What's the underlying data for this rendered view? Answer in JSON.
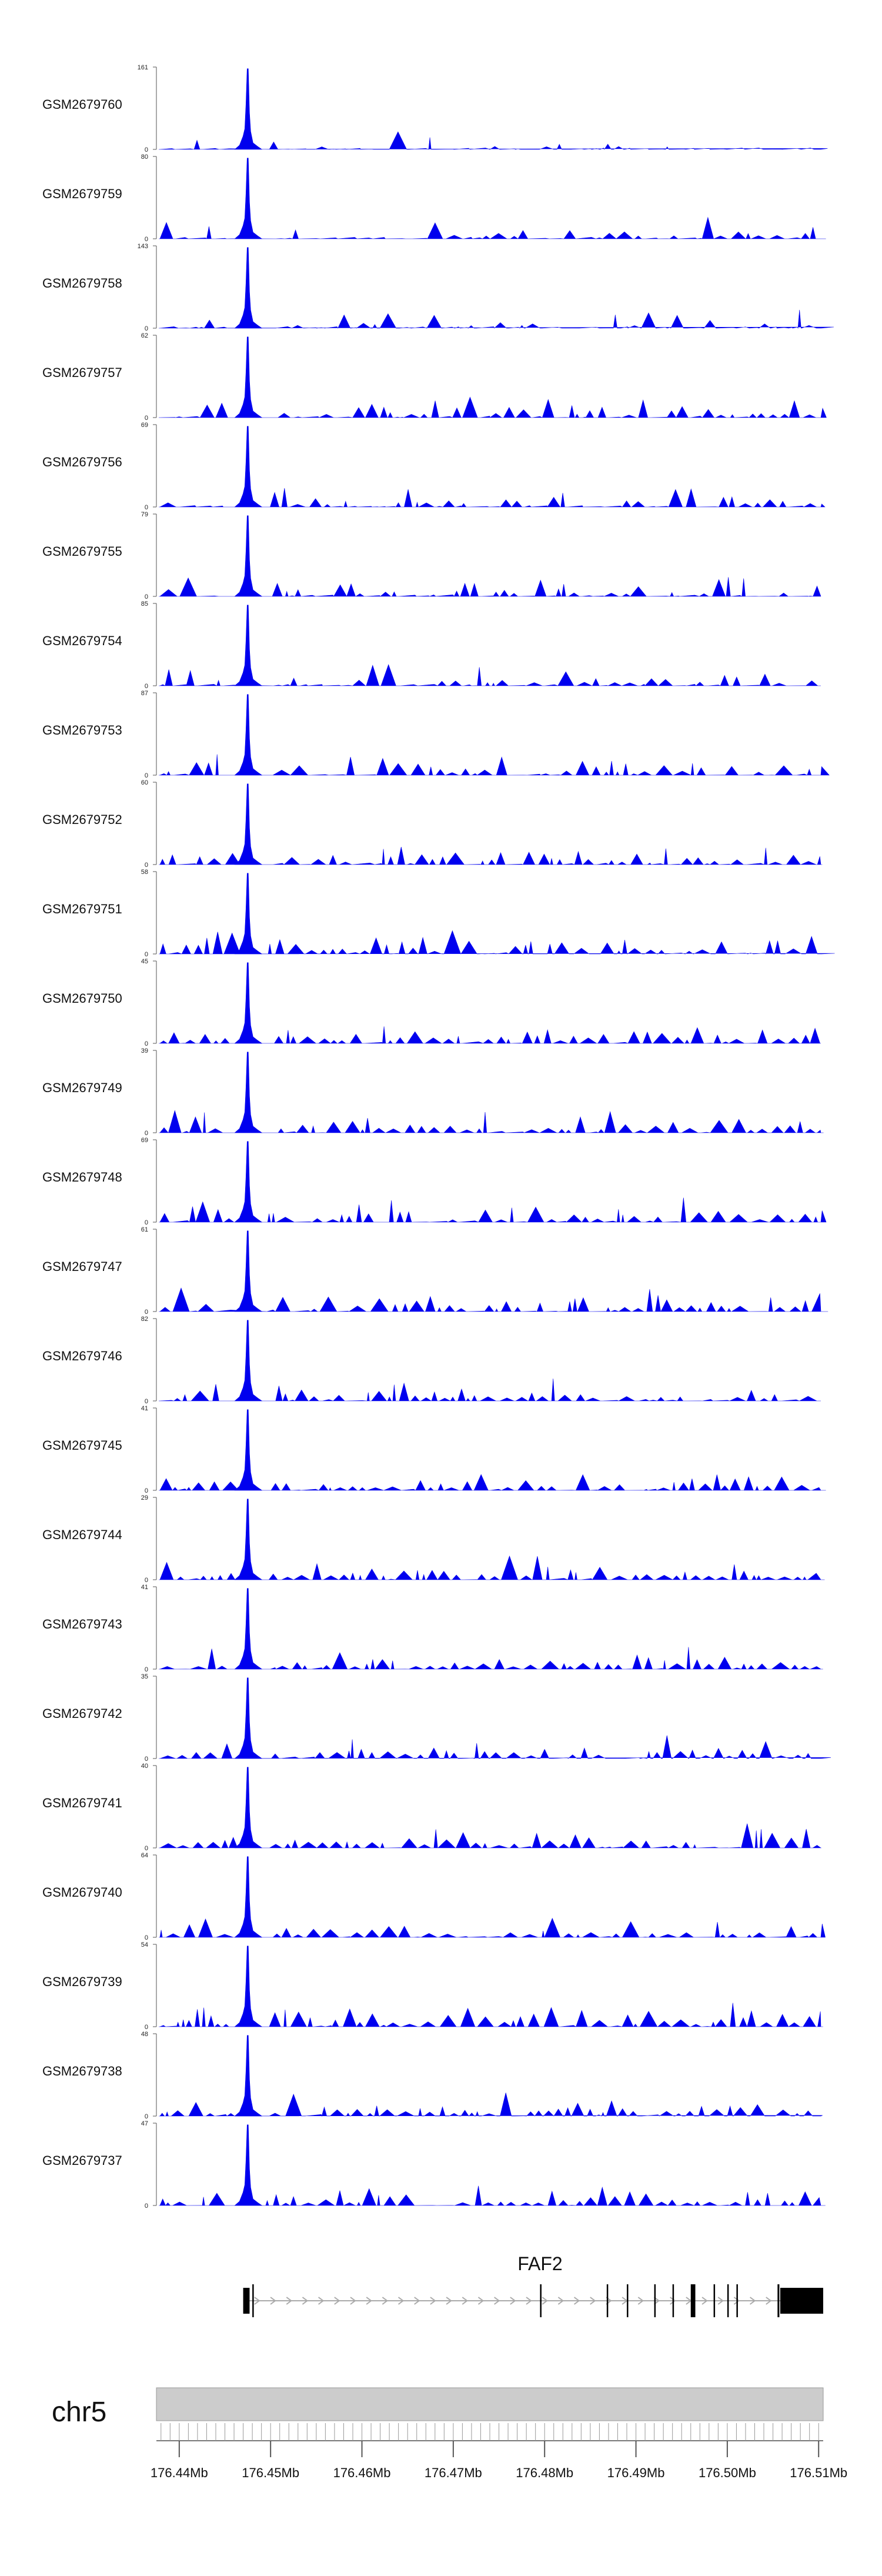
{
  "chart_data": {
    "type": "area",
    "chromosome": "chr5",
    "gene": "FAF2",
    "xlim": [
      176.4375,
      176.5105
    ],
    "peak_position": 176.4475,
    "tracks": [
      {
        "name": "GSM2679760",
        "ymax": 161,
        "ymin": 0
      },
      {
        "name": "GSM2679759",
        "ymax": 80,
        "ymin": 0
      },
      {
        "name": "GSM2679758",
        "ymax": 143,
        "ymin": 0
      },
      {
        "name": "GSM2679757",
        "ymax": 62,
        "ymin": 0
      },
      {
        "name": "GSM2679756",
        "ymax": 69,
        "ymin": 0
      },
      {
        "name": "GSM2679755",
        "ymax": 79,
        "ymin": 0
      },
      {
        "name": "GSM2679754",
        "ymax": 85,
        "ymin": 0
      },
      {
        "name": "GSM2679753",
        "ymax": 87,
        "ymin": 0
      },
      {
        "name": "GSM2679752",
        "ymax": 60,
        "ymin": 0
      },
      {
        "name": "GSM2679751",
        "ymax": 58,
        "ymin": 0
      },
      {
        "name": "GSM2679750",
        "ymax": 45,
        "ymin": 0
      },
      {
        "name": "GSM2679749",
        "ymax": 39,
        "ymin": 0
      },
      {
        "name": "GSM2679748",
        "ymax": 69,
        "ymin": 0
      },
      {
        "name": "GSM2679747",
        "ymax": 61,
        "ymin": 0
      },
      {
        "name": "GSM2679746",
        "ymax": 82,
        "ymin": 0
      },
      {
        "name": "GSM2679745",
        "ymax": 41,
        "ymin": 0
      },
      {
        "name": "GSM2679744",
        "ymax": 29,
        "ymin": 0
      },
      {
        "name": "GSM2679743",
        "ymax": 41,
        "ymin": 0
      },
      {
        "name": "GSM2679742",
        "ymax": 35,
        "ymin": 0
      },
      {
        "name": "GSM2679741",
        "ymax": 40,
        "ymin": 0
      },
      {
        "name": "GSM2679740",
        "ymax": 64,
        "ymin": 0
      },
      {
        "name": "GSM2679739",
        "ymax": 54,
        "ymin": 0
      },
      {
        "name": "GSM2679738",
        "ymax": 48,
        "ymin": 0
      },
      {
        "name": "GSM2679737",
        "ymax": 47,
        "ymin": 0
      }
    ],
    "gene_model": {
      "start": 176.447,
      "end": 176.5105,
      "strand": "+",
      "exons": [
        {
          "start": 176.447,
          "end": 176.4477
        },
        {
          "start": 176.448,
          "end": 176.4481
        },
        {
          "start": 176.4795,
          "end": 176.4796
        },
        {
          "start": 176.4868,
          "end": 176.4869
        },
        {
          "start": 176.489,
          "end": 176.4891
        },
        {
          "start": 176.492,
          "end": 176.4921
        },
        {
          "start": 176.494,
          "end": 176.4941
        },
        {
          "start": 176.496,
          "end": 176.4965
        },
        {
          "start": 176.4985,
          "end": 176.4986
        },
        {
          "start": 176.5,
          "end": 176.5001
        },
        {
          "start": 176.501,
          "end": 176.5011
        },
        {
          "start": 176.5055,
          "end": 176.5057
        },
        {
          "start": 176.5058,
          "end": 176.5105
        }
      ]
    },
    "axis": {
      "ticks": [
        {
          "pos": 176.44,
          "label": "176.44Mb"
        },
        {
          "pos": 176.45,
          "label": "176.45Mb"
        },
        {
          "pos": 176.46,
          "label": "176.46Mb"
        },
        {
          "pos": 176.47,
          "label": "176.47Mb"
        },
        {
          "pos": 176.48,
          "label": "176.48Mb"
        },
        {
          "pos": 176.49,
          "label": "176.49Mb"
        },
        {
          "pos": 176.5,
          "label": "176.50Mb"
        },
        {
          "pos": 176.51,
          "label": "176.51Mb"
        }
      ],
      "minor_step": 0.001
    },
    "fill_color": "#0000ee",
    "gene_color": "#000000",
    "intron_color": "#aaaaaa",
    "ideogram_color": "#cccccc"
  }
}
